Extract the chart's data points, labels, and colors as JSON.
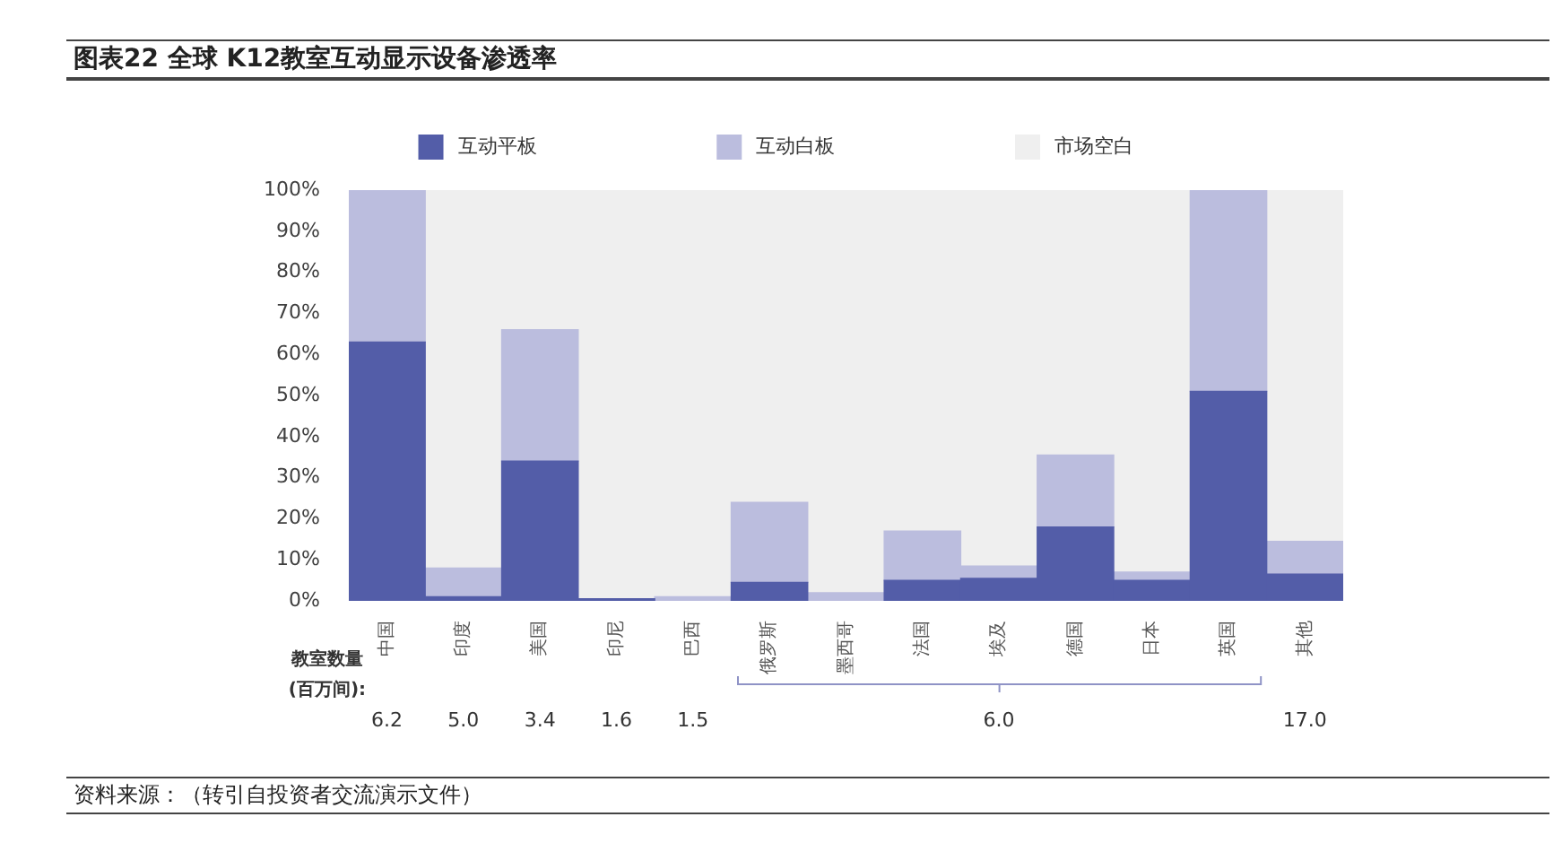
{
  "chart_data": {
    "type": "bar",
    "title": "图表22 全球 K12教室互动显示设备渗透率",
    "categories": [
      "中国",
      "印度",
      "美国",
      "印尼",
      "巴西",
      "俄罗斯",
      "墨西哥",
      "法国",
      "埃及",
      "德国",
      "日本",
      "英国",
      "其他"
    ],
    "stacked": true,
    "series": [
      {
        "name": "互动平板",
        "color": "#535da8",
        "values": [
          63,
          1,
          34,
          0.5,
          null,
          4.5,
          null,
          5,
          5.5,
          18,
          5,
          51,
          6.5
        ]
      },
      {
        "name": "互动白板",
        "color": "#bbbdde",
        "values": [
          37,
          7,
          32,
          null,
          1,
          19.5,
          2,
          12,
          3,
          17.5,
          2,
          49,
          8
        ]
      },
      {
        "name": "市场空白",
        "color": "#efefef",
        "values": [
          null,
          92,
          34,
          99.5,
          99,
          76,
          98,
          83,
          91.5,
          64.5,
          93,
          null,
          85.5
        ]
      }
    ],
    "ylim": [
      0,
      100
    ],
    "yticks": [
      {
        "value": 0,
        "label": "0%"
      },
      {
        "value": 10,
        "label": "10%"
      },
      {
        "value": 20,
        "label": "20%"
      },
      {
        "value": 30,
        "label": "30%"
      },
      {
        "value": 40,
        "label": "40%"
      },
      {
        "value": 50,
        "label": "50%"
      },
      {
        "value": 60,
        "label": "60%"
      },
      {
        "value": 70,
        "label": "70%"
      },
      {
        "value": 80,
        "label": "80%"
      },
      {
        "value": 90,
        "label": "90%"
      },
      {
        "value": 100,
        "label": "100%"
      }
    ],
    "legend": "top",
    "annotations": [
      "教室数量",
      "(百万间):",
      "6.2",
      "5.0",
      "3.4",
      "1.6",
      "1.5",
      "6.0",
      "17.0",
      "资料来源：（转引自投资者交流演示文件）"
    ]
  }
}
